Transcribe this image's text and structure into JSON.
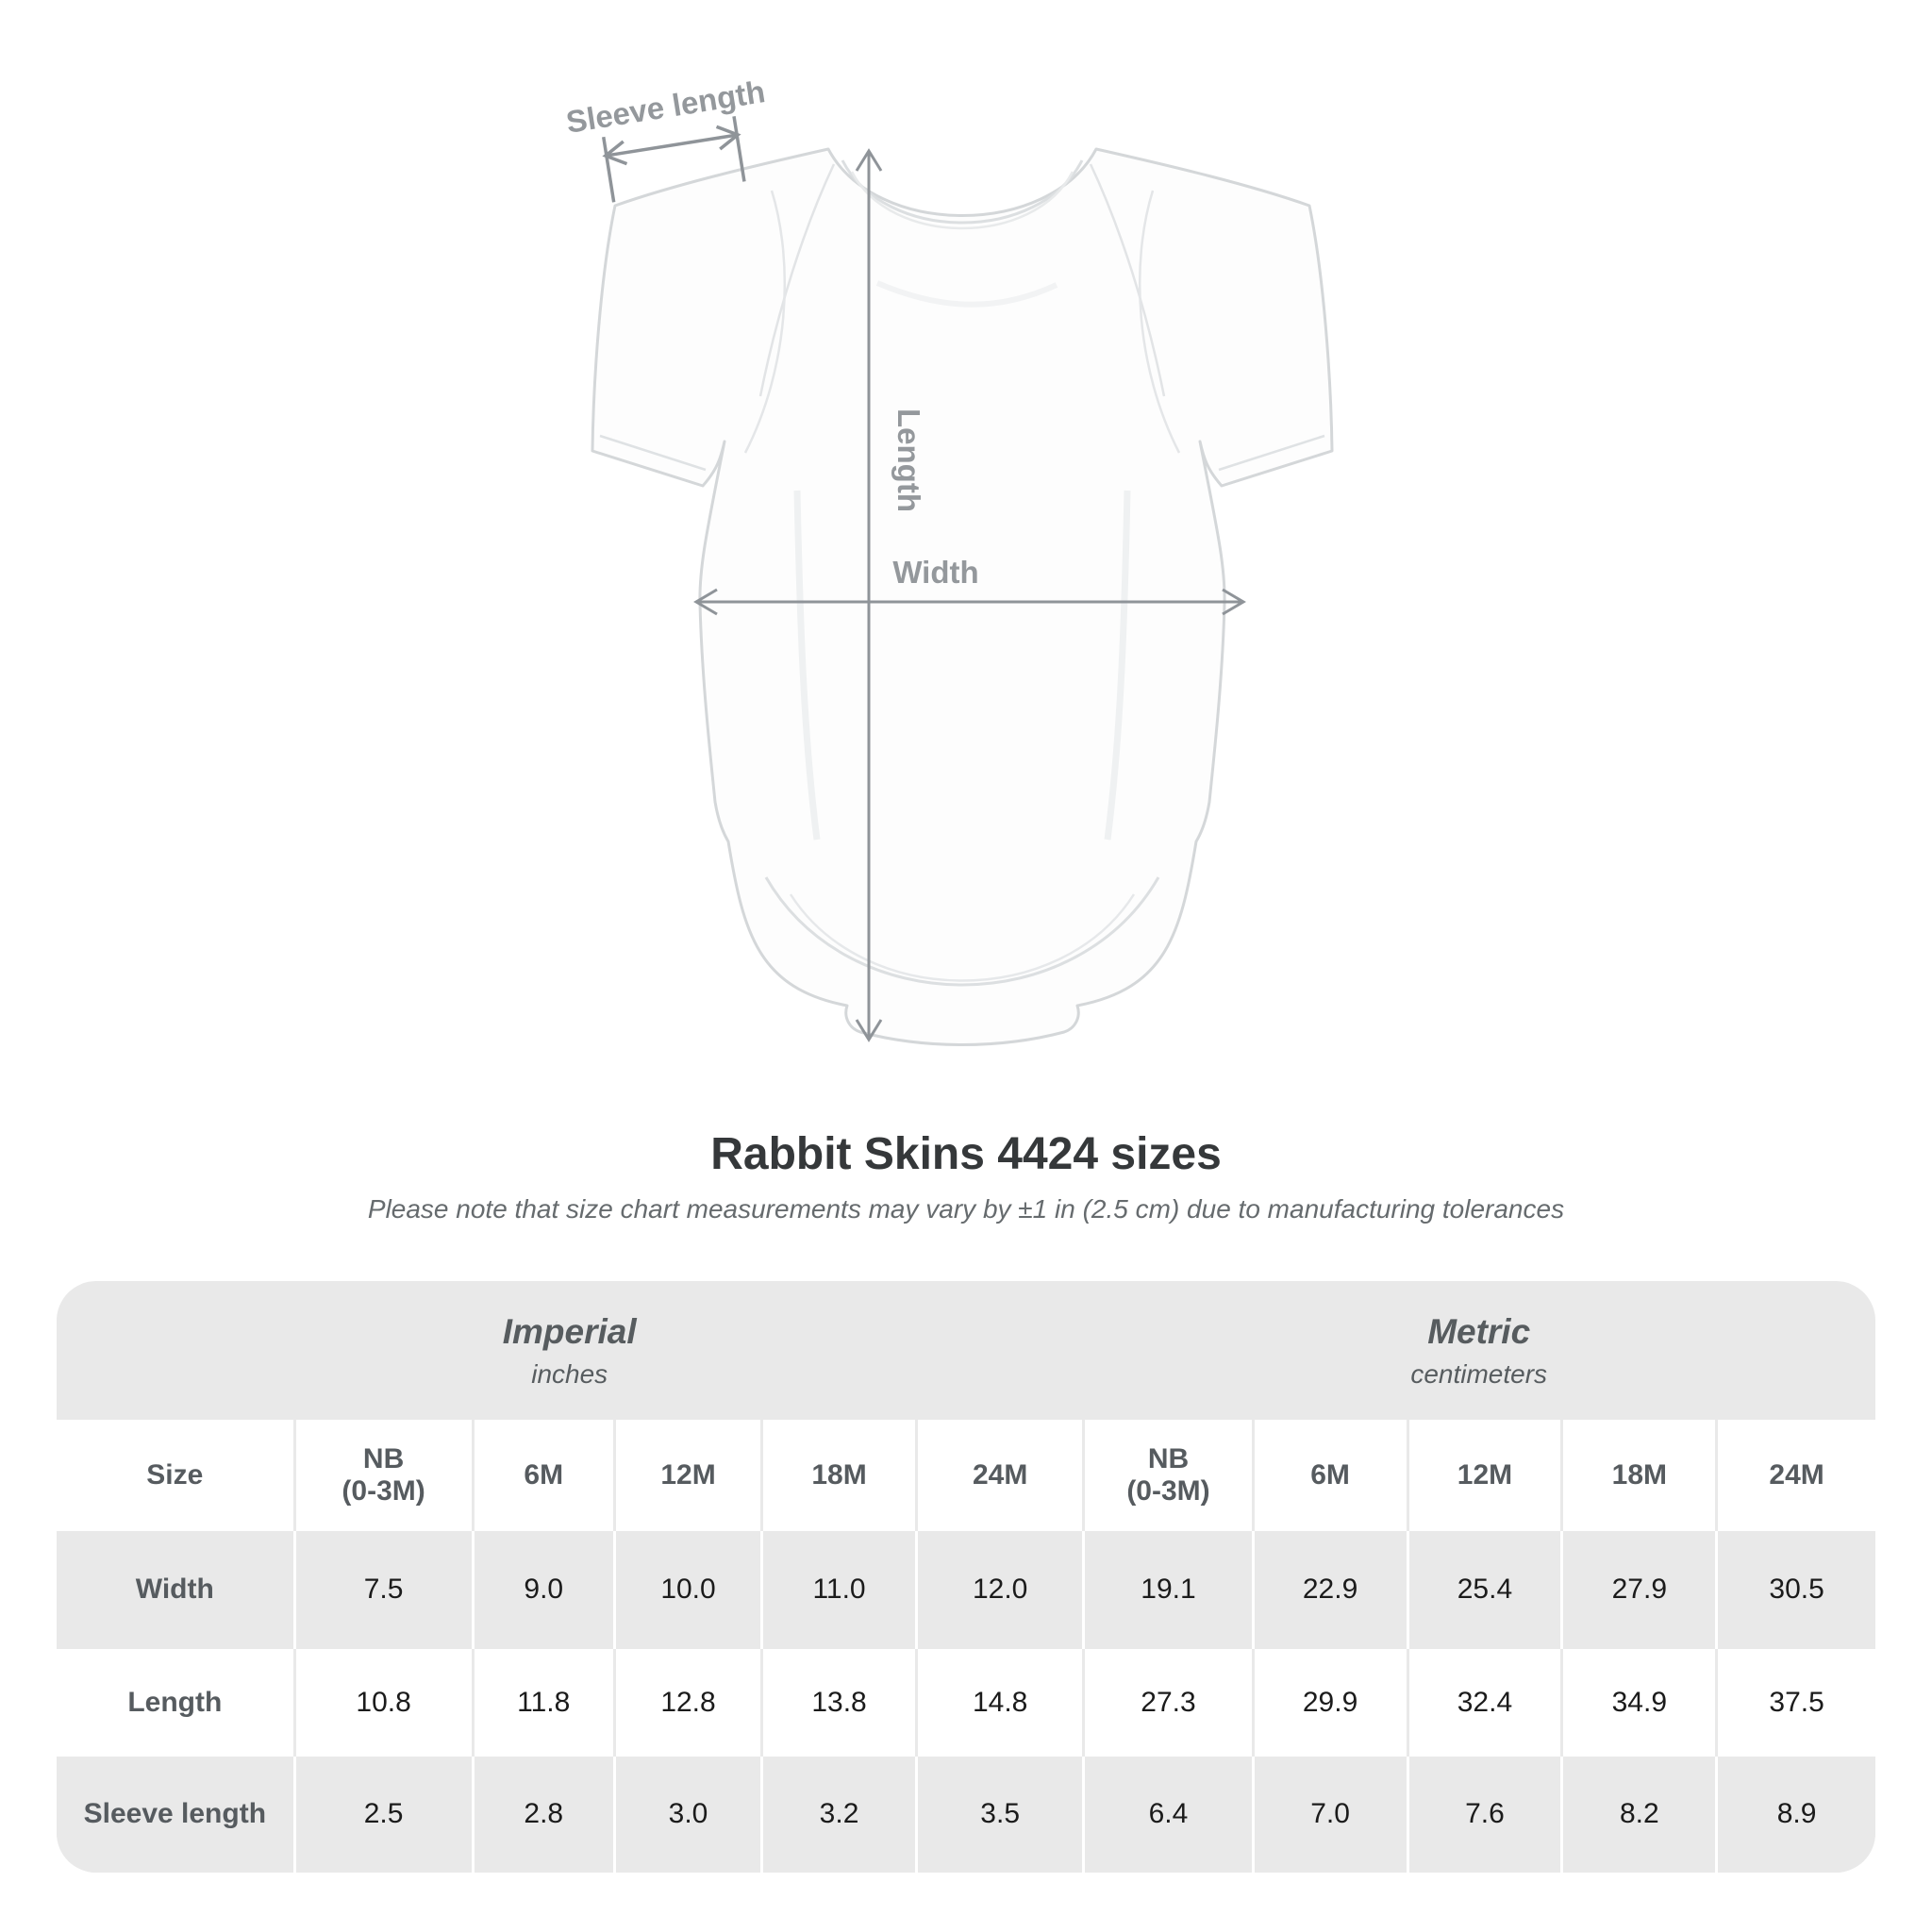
{
  "page_title": "Rabbit Skins 4424 sizes",
  "subtitle": "Please note that size chart measurements may vary by ±1 in (2.5 cm) due to manufacturing tolerances",
  "diagram": {
    "sleeve_label": "Sleeve length",
    "length_label": "Length",
    "width_label": "Width",
    "annotation_color": "#8f9499"
  },
  "table": {
    "size_header": "Size",
    "background": "#e9e9e9",
    "sections": [
      {
        "title": "Imperial",
        "unit": "inches"
      },
      {
        "title": "Metric",
        "unit": "centimeters"
      }
    ]
  },
  "chart_data": {
    "type": "table",
    "title": "Rabbit Skins 4424 sizes",
    "note": "Measurements may vary by ±1 in (2.5 cm) due to manufacturing tolerances",
    "sections": [
      {
        "name": "Imperial",
        "unit": "inches",
        "columns": [
          "NB (0-3M)",
          "6M",
          "12M",
          "18M",
          "24M"
        ]
      },
      {
        "name": "Metric",
        "unit": "centimeters",
        "columns": [
          "NB (0-3M)",
          "6M",
          "12M",
          "18M",
          "24M"
        ]
      }
    ],
    "rows": [
      {
        "measurement": "Width",
        "imperial": [
          7.5,
          9.0,
          10.0,
          11.0,
          12.0
        ],
        "metric": [
          19.1,
          22.9,
          25.4,
          27.9,
          30.5
        ]
      },
      {
        "measurement": "Length",
        "imperial": [
          10.8,
          11.8,
          12.8,
          13.8,
          14.8
        ],
        "metric": [
          27.3,
          29.9,
          32.4,
          34.9,
          37.5
        ]
      },
      {
        "measurement": "Sleeve length",
        "imperial": [
          2.5,
          2.8,
          3.0,
          3.2,
          3.5
        ],
        "metric": [
          6.4,
          7.0,
          7.6,
          8.2,
          8.9
        ]
      }
    ]
  }
}
